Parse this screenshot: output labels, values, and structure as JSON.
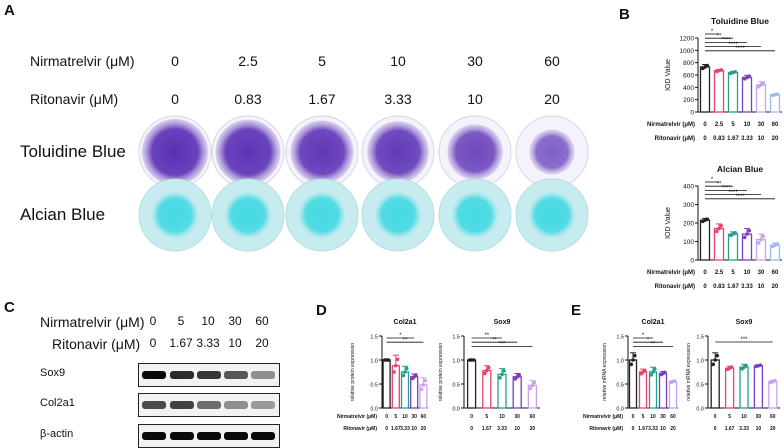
{
  "panel_labels": {
    "a": "A",
    "b": "B",
    "c": "C",
    "d": "D",
    "e": "E"
  },
  "panel_a": {
    "nirmatrelvir_label": "Nirmatrelvir (μM)",
    "ritonavir_label": "Ritonavir (μM)",
    "nirmatrelvir_values": [
      "0",
      "2.5",
      "5",
      "10",
      "30",
      "60"
    ],
    "ritonavir_values": [
      "0",
      "0.83",
      "1.67",
      "3.33",
      "10",
      "20"
    ],
    "row1_label": "Toluidine Blue",
    "row2_label": "Alcian Blue",
    "colors": {
      "toluidine_core": "#5a2fb4",
      "toluidine_halo": "#b8a8e0",
      "alcian_core": "#2fd6e0",
      "alcian_halo": "#c7ecef"
    },
    "toluidine_intensity": [
      1.0,
      0.97,
      0.92,
      0.88,
      0.72,
      0.45
    ]
  },
  "panel_c": {
    "nirmatrelvir_label": "Nirmatrelvir (μM)",
    "ritonavir_label": "Ritonavir (μM)",
    "nirmatrelvir_values": [
      "0",
      "5",
      "10",
      "30",
      "60"
    ],
    "ritonavir_values": [
      "0",
      "1.67",
      "3.33",
      "10",
      "20"
    ],
    "blots": [
      {
        "label": "Sox9",
        "intensity": [
          1.0,
          0.85,
          0.8,
          0.65,
          0.4
        ]
      },
      {
        "label": "Col2a1",
        "intensity": [
          0.7,
          0.75,
          0.55,
          0.4,
          0.35
        ]
      },
      {
        "label": "β-actin",
        "intensity": [
          1.0,
          1.0,
          1.0,
          1.0,
          1.0
        ]
      }
    ]
  },
  "chart_data": [
    {
      "id": "B-toluidine",
      "type": "bar",
      "title": "Toluidine Blue",
      "ylabel": "IOD Value",
      "ylim": [
        0,
        1200
      ],
      "yticks": [
        "0",
        "200",
        "400",
        "600",
        "800",
        "1000",
        "1200"
      ],
      "row1_label": "Nirmatrelvir (μM)",
      "row1": [
        "0",
        "2.5",
        "5",
        "10",
        "30",
        "60"
      ],
      "row2_label": "Ritonavir (μM)",
      "row2": [
        "0",
        "0.83",
        "1.67",
        "3.33",
        "10",
        "20"
      ],
      "values": [
        730,
        670,
        640,
        560,
        440,
        280
      ],
      "errors": [
        40,
        20,
        20,
        35,
        50,
        15
      ],
      "colors": [
        "#222222",
        "#e8436a",
        "#22a08c",
        "#7a3fbe",
        "#c9a3ea",
        "#9fb8f2"
      ],
      "significance": [
        "*",
        "**",
        "****",
        "****",
        "****"
      ]
    },
    {
      "id": "B-alcian",
      "type": "bar",
      "title": "Alcian Blue",
      "ylabel": "IOD Value",
      "ylim": [
        0,
        400
      ],
      "yticks": [
        "0",
        "100",
        "200",
        "300",
        "400"
      ],
      "row1_label": "Nirmatrelvir (μM)",
      "row1": [
        "0",
        "2.5",
        "5",
        "10",
        "30",
        "60"
      ],
      "row2_label": "Ritonavir (μM)",
      "row2": [
        "0",
        "0.83",
        "1.67",
        "3.33",
        "10",
        "20"
      ],
      "values": [
        215,
        170,
        140,
        140,
        110,
        80
      ],
      "errors": [
        10,
        25,
        12,
        30,
        30,
        12
      ],
      "colors": [
        "#222222",
        "#e8436a",
        "#22a08c",
        "#7a3fbe",
        "#c9a3ea",
        "#9fb8f2"
      ],
      "significance": [
        "*",
        "**",
        "****",
        "****",
        "****"
      ]
    },
    {
      "id": "D-col2a1",
      "type": "bar",
      "title": "Col2a1",
      "ylabel": "relative protein expression",
      "ylim": [
        0,
        1.5
      ],
      "yticks": [
        "0.0",
        "0.5",
        "1.0",
        "1.5"
      ],
      "row1_label": "Nirmatrelvir (μM)",
      "row1": [
        "0",
        "5",
        "10",
        "30",
        "60"
      ],
      "row2_label": "Ritonavir (μM)",
      "row2": [
        "0",
        "1.67",
        "3.33",
        "10",
        "20"
      ],
      "values": [
        1.0,
        0.88,
        0.75,
        0.65,
        0.48
      ],
      "errors": [
        0.0,
        0.22,
        0.12,
        0.06,
        0.15
      ],
      "colors": [
        "#222222",
        "#e8436a",
        "#22a08c",
        "#7a3fbe",
        "#c9a3ea"
      ],
      "significance": [
        "*",
        "**"
      ]
    },
    {
      "id": "D-sox9",
      "type": "bar",
      "title": "Sox9",
      "ylabel": "relative protein expression",
      "ylim": [
        0,
        1.5
      ],
      "yticks": [
        "0.0",
        "0.5",
        "1.0",
        "1.5"
      ],
      "row1_label": "",
      "row1": [
        "0",
        "5",
        "10",
        "30",
        "60"
      ],
      "row2_label": "",
      "row2": [
        "0",
        "1.67",
        "3.33",
        "10",
        "20"
      ],
      "values": [
        1.0,
        0.78,
        0.7,
        0.65,
        0.47
      ],
      "errors": [
        0.0,
        0.1,
        0.12,
        0.07,
        0.1
      ],
      "colors": [
        "#222222",
        "#e8436a",
        "#22a08c",
        "#7a3fbe",
        "#c9a3ea"
      ],
      "significance": [
        "**",
        "**",
        "***"
      ]
    },
    {
      "id": "E-col2a1",
      "type": "bar",
      "title": "Col2a1",
      "ylabel": "relative mRNA expression",
      "ylim": [
        0,
        1.5
      ],
      "yticks": [
        "0.0",
        "0.5",
        "1.0",
        "1.5"
      ],
      "row1_label": "Nirmatrelvir (μM)",
      "row1": [
        "0",
        "5",
        "10",
        "30",
        "60"
      ],
      "row2_label": "Ritonavir (μM)",
      "row2": [
        "0",
        "1.67",
        "3.33",
        "10",
        "20"
      ],
      "values": [
        1.0,
        0.75,
        0.75,
        0.72,
        0.55
      ],
      "errors": [
        0.15,
        0.06,
        0.1,
        0.04,
        0.02
      ],
      "colors": [
        "#222222",
        "#e8436a",
        "#22a08c",
        "#7a3fbe",
        "#c9a3ea"
      ],
      "significance": [
        "*",
        "*",
        "**"
      ]
    },
    {
      "id": "E-sox9",
      "type": "bar",
      "title": "Sox9",
      "ylabel": "relative mRNA expression",
      "ylim": [
        0,
        1.5
      ],
      "yticks": [
        "0.0",
        "0.5",
        "1.0",
        "1.5"
      ],
      "row1_label": "",
      "row1": [
        "0",
        "5",
        "10",
        "30",
        "60"
      ],
      "row2_label": "",
      "row2": [
        "0",
        "1.67",
        "3.33",
        "10",
        "20"
      ],
      "values": [
        1.0,
        0.83,
        0.85,
        0.88,
        0.55
      ],
      "errors": [
        0.15,
        0.04,
        0.06,
        0.02,
        0.03
      ],
      "colors": [
        "#222222",
        "#e8436a",
        "#22a08c",
        "#7a3fbe",
        "#c9a3ea"
      ],
      "significance": [
        "***"
      ]
    }
  ]
}
